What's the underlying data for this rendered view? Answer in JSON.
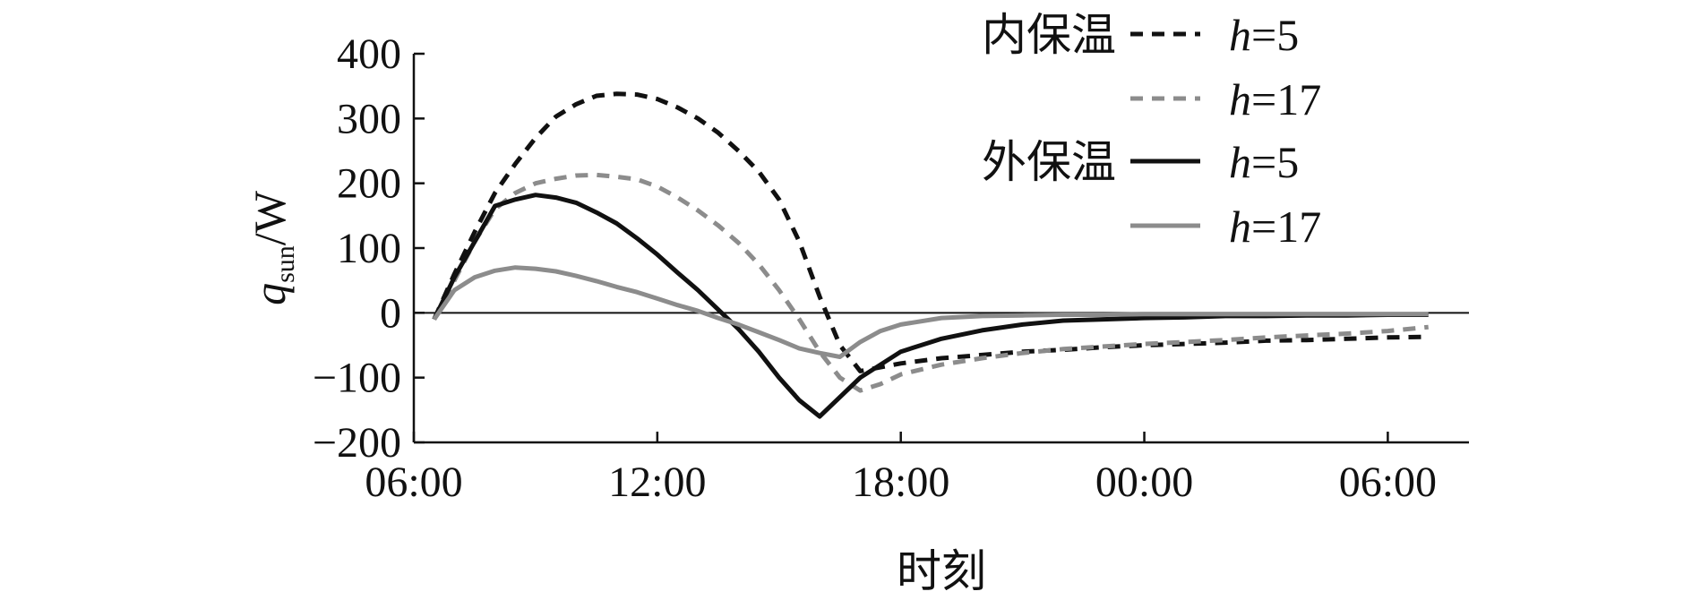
{
  "chart_data": {
    "type": "line",
    "title": "",
    "xlabel": "时刻",
    "ylabel": {
      "symbol": "q",
      "subscript": "sun",
      "unit": "/W"
    },
    "ylim": [
      -200,
      400
    ],
    "yticks": [
      400,
      300,
      200,
      100,
      0,
      -100,
      -200
    ],
    "ytick_labels": [
      "400",
      "300",
      "200",
      "100",
      "0",
      "−100",
      "−200"
    ],
    "xlim_hours": [
      6,
      32
    ],
    "xticks_hours": [
      6,
      12,
      18,
      24,
      30
    ],
    "xtick_labels": [
      "06:00",
      "12:00",
      "18:00",
      "00:00",
      "06:00"
    ],
    "grid": false,
    "zero_line": true,
    "legend_position": "top-right",
    "legend_groups": [
      {
        "label": "内保温",
        "series": [
          0,
          1
        ]
      },
      {
        "label": "外保温",
        "series": [
          2,
          3
        ]
      }
    ],
    "series": [
      {
        "name": "h=5",
        "group": "内保温",
        "style": "dashed",
        "color": "#111111",
        "x": [
          6.5,
          7,
          7.5,
          8,
          8.5,
          9,
          9.5,
          10,
          10.5,
          11,
          11.5,
          12,
          12.5,
          13,
          13.5,
          14,
          14.5,
          15,
          15.5,
          16,
          16.5,
          17,
          18,
          19,
          20,
          21,
          22,
          23,
          24,
          25,
          26,
          27,
          28,
          29,
          30,
          31
        ],
        "y": [
          -10,
          60,
          125,
          185,
          230,
          270,
          303,
          322,
          335,
          338,
          337,
          330,
          317,
          300,
          278,
          250,
          218,
          175,
          110,
          25,
          -50,
          -90,
          -78,
          -70,
          -65,
          -60,
          -57,
          -53,
          -50,
          -48,
          -46,
          -43,
          -42,
          -40,
          -38,
          -37
        ]
      },
      {
        "name": "h=17",
        "group": "内保温",
        "style": "dashed",
        "color": "#8c8c8c",
        "x": [
          6.5,
          7,
          7.5,
          8,
          8.5,
          9,
          9.5,
          10,
          10.5,
          11,
          11.5,
          12,
          12.5,
          13,
          13.5,
          14,
          14.5,
          15,
          15.5,
          16,
          16.5,
          17,
          17.5,
          18,
          19,
          20,
          21,
          22,
          23,
          24,
          25,
          26,
          27,
          28,
          29,
          30,
          31
        ],
        "y": [
          -10,
          50,
          110,
          160,
          185,
          200,
          207,
          212,
          213,
          210,
          206,
          195,
          178,
          158,
          135,
          108,
          75,
          35,
          -10,
          -60,
          -100,
          -120,
          -110,
          -95,
          -80,
          -70,
          -62,
          -56,
          -52,
          -48,
          -45,
          -42,
          -38,
          -35,
          -32,
          -28,
          -22
        ]
      },
      {
        "name": "h=5",
        "group": "外保温",
        "style": "solid",
        "color": "#111111",
        "x": [
          6.5,
          7,
          7.5,
          8,
          8.5,
          9,
          9.5,
          10,
          10.5,
          11,
          11.5,
          12,
          12.5,
          13,
          13.5,
          14,
          14.5,
          15,
          15.5,
          16,
          16.5,
          17,
          18,
          19,
          20,
          21,
          22,
          23,
          24,
          25,
          26,
          27,
          28,
          29,
          30,
          31
        ],
        "y": [
          -10,
          55,
          110,
          165,
          175,
          182,
          178,
          170,
          155,
          138,
          115,
          90,
          62,
          35,
          5,
          -25,
          -60,
          -100,
          -135,
          -160,
          -130,
          -100,
          -60,
          -40,
          -27,
          -18,
          -12,
          -10,
          -8,
          -7,
          -5,
          -5,
          -4,
          -4,
          -3,
          -3
        ]
      },
      {
        "name": "h=17",
        "group": "外保温",
        "style": "solid",
        "color": "#8c8c8c",
        "x": [
          6.5,
          7,
          7.5,
          8,
          8.5,
          9,
          9.5,
          10,
          10.5,
          11,
          11.5,
          12,
          12.5,
          13,
          13.5,
          14,
          14.5,
          15,
          15.5,
          16,
          16.5,
          17,
          17.5,
          18,
          19,
          20,
          21,
          22,
          23,
          24,
          25,
          26,
          27,
          28,
          29,
          30,
          31
        ],
        "y": [
          -10,
          35,
          55,
          65,
          70,
          68,
          64,
          57,
          49,
          40,
          32,
          22,
          12,
          3,
          -8,
          -18,
          -30,
          -42,
          -55,
          -62,
          -68,
          -45,
          -28,
          -18,
          -8,
          -5,
          -4,
          -3,
          -3,
          -2,
          -2,
          -2,
          -2,
          -2,
          -2,
          -2,
          -2
        ]
      }
    ]
  }
}
